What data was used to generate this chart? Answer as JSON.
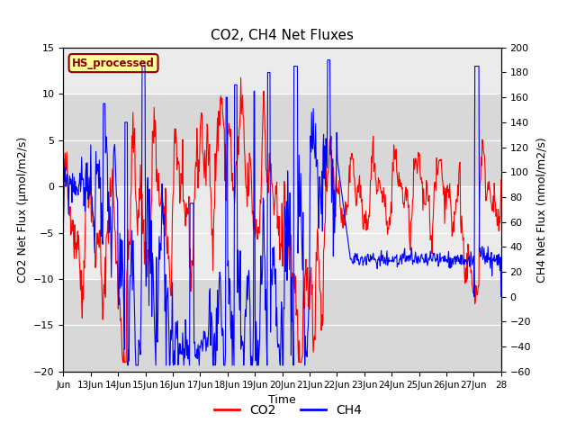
{
  "title": "CO2, CH4 Net Fluxes",
  "xlabel": "Time",
  "ylabel_left": "CO2 Net Flux (μmol/m2/s)",
  "ylabel_right": "CH4 Net Flux (nmol/m2/s)",
  "ylim_left": [
    -20,
    15
  ],
  "ylim_right": [
    -60,
    200
  ],
  "xtick_labels": [
    "Jun",
    "13Jun",
    "14Jun",
    "15Jun",
    "16Jun",
    "17Jun",
    "18Jun",
    "19Jun",
    "20Jun",
    "21Jun",
    "22Jun",
    "23Jun",
    "24Jun",
    "25Jun",
    "26Jun",
    "27Jun",
    "28"
  ],
  "yticks_left": [
    -20,
    -15,
    -10,
    -5,
    0,
    5,
    10,
    15
  ],
  "yticks_right": [
    -60,
    -40,
    -20,
    0,
    20,
    40,
    60,
    80,
    100,
    120,
    140,
    160,
    180,
    200
  ],
  "annotation_text": "HS_processed",
  "annotation_color": "#8B0000",
  "annotation_bg": "#FFFF99",
  "annotation_border": "#8B0000",
  "co2_color": "red",
  "ch4_color": "blue",
  "band_color": "#D8D8D8",
  "plot_bg": "#EBEBEB",
  "grid_color": "#C8C8C8"
}
